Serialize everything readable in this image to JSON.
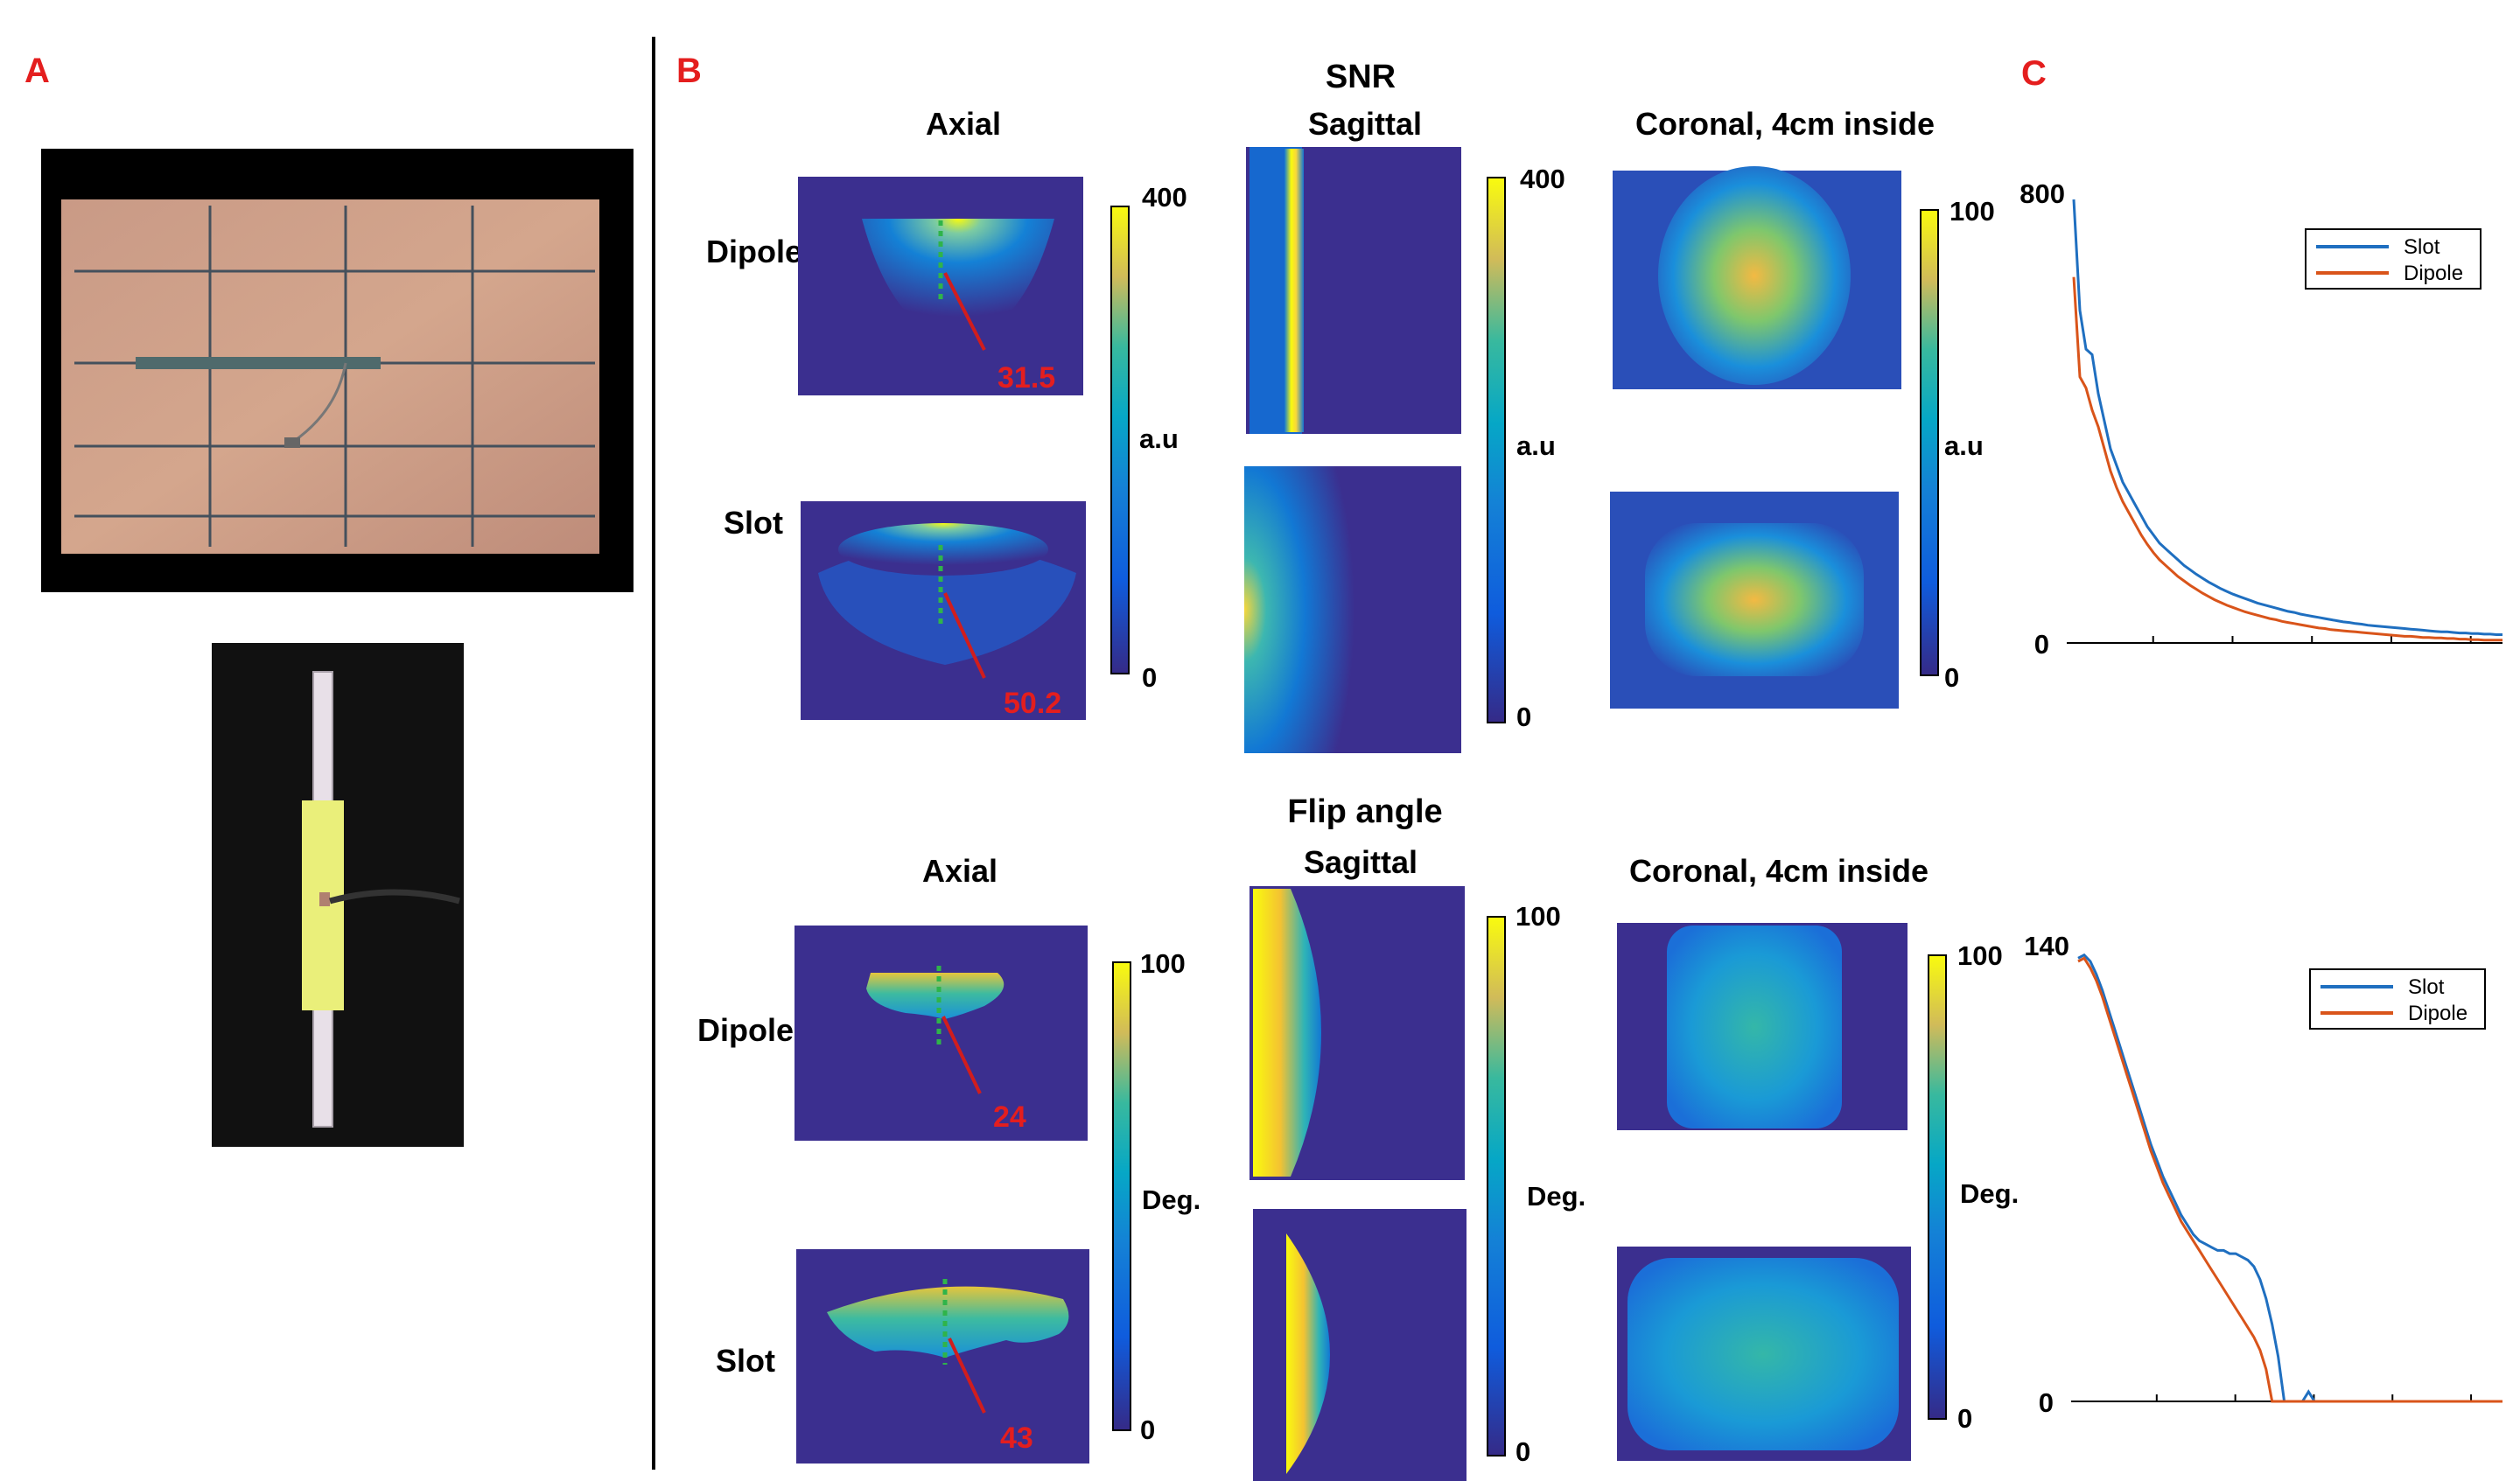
{
  "panels": {
    "a": "A",
    "b": "B",
    "c": "C"
  },
  "snr_section": {
    "title": "SNR",
    "axial": "Axial",
    "sagittal": "Sagittal",
    "coronal": "Coronal, 4cm inside",
    "row_dipole": "Dipole",
    "row_slot": "Slot",
    "dipole_value": "31.5",
    "slot_value": "50.2",
    "colorbars": [
      {
        "max": "400",
        "min": "0",
        "unit": "a.u"
      },
      {
        "max": "400",
        "min": "0",
        "unit": "a.u"
      },
      {
        "max": "100",
        "min": "0",
        "unit": "a.u"
      }
    ]
  },
  "flip_section": {
    "title": "Flip angle",
    "axial": "Axial",
    "sagittal": "Sagittal",
    "coronal": "Coronal, 4cm inside",
    "row_dipole": "Dipole",
    "row_slot": "Slot",
    "dipole_value": "24",
    "slot_value": "43",
    "colorbars": [
      {
        "max": "100",
        "min": "0",
        "unit": "Deg."
      },
      {
        "max": "100",
        "min": "0",
        "unit": "Deg."
      },
      {
        "max": "100",
        "min": "0",
        "unit": "Deg."
      }
    ]
  },
  "colors": {
    "slot": "#1f6fc0",
    "dipole": "#d9541a",
    "red_label": "#e41e1e",
    "map_bg": "#3b2f8f",
    "board": "#c9977f"
  },
  "chart_data": [
    {
      "type": "line",
      "title": "",
      "xlabel": "",
      "ylabel": "",
      "ylim": [
        0,
        800
      ],
      "ytick_labels": [
        "0",
        "800"
      ],
      "legend_position": "top-right",
      "x": [
        0,
        1,
        2,
        3,
        4,
        5,
        6,
        7,
        8,
        9,
        10,
        11,
        12,
        13,
        14,
        15,
        16,
        17,
        18,
        19,
        20,
        21,
        22,
        23,
        24,
        25,
        26,
        27,
        28,
        29,
        30,
        31,
        32,
        33,
        34,
        35,
        36,
        37,
        38,
        39,
        40,
        41,
        42,
        43,
        44,
        45,
        46,
        47,
        48,
        49,
        50,
        51,
        52,
        53,
        54,
        55,
        56,
        57,
        58,
        59,
        60,
        61,
        62,
        63,
        64,
        65,
        66,
        67,
        68,
        69,
        70
      ],
      "series": [
        {
          "name": "Slot",
          "values": [
            800,
            600,
            530,
            520,
            450,
            400,
            350,
            320,
            290,
            270,
            250,
            230,
            210,
            195,
            180,
            170,
            160,
            150,
            140,
            132,
            124,
            117,
            110,
            104,
            98,
            93,
            88,
            84,
            80,
            76,
            72,
            69,
            66,
            63,
            60,
            57,
            55,
            52,
            50,
            48,
            46,
            44,
            42,
            40,
            38,
            37,
            35,
            34,
            32,
            31,
            30,
            29,
            28,
            27,
            26,
            25,
            24,
            23,
            22,
            21,
            20,
            20,
            19,
            18,
            18,
            17,
            17,
            16,
            16,
            15,
            15
          ]
        },
        {
          "name": "Dipole",
          "values": [
            660,
            480,
            460,
            420,
            390,
            350,
            310,
            280,
            255,
            235,
            215,
            195,
            178,
            163,
            150,
            140,
            130,
            120,
            112,
            104,
            97,
            90,
            84,
            78,
            73,
            68,
            64,
            60,
            56,
            53,
            50,
            47,
            44,
            42,
            39,
            37,
            35,
            33,
            31,
            29,
            27,
            26,
            24,
            23,
            22,
            21,
            20,
            19,
            18,
            17,
            16,
            15,
            14,
            13,
            12,
            12,
            11,
            10,
            10,
            9,
            9,
            8,
            8,
            7,
            7,
            6,
            6,
            5,
            5,
            5,
            5
          ]
        }
      ]
    },
    {
      "type": "line",
      "title": "",
      "xlabel": "",
      "ylabel": "",
      "ylim": [
        0,
        140
      ],
      "ytick_labels": [
        "0",
        "140"
      ],
      "legend_position": "top-right",
      "x": [
        0,
        1,
        2,
        3,
        4,
        5,
        6,
        7,
        8,
        9,
        10,
        11,
        12,
        13,
        14,
        15,
        16,
        17,
        18,
        19,
        20,
        21,
        22,
        23,
        24,
        25,
        26,
        27,
        28,
        29,
        30,
        31,
        32,
        33,
        34,
        35,
        36,
        37,
        38,
        39,
        40,
        41,
        42,
        43,
        44,
        45,
        46,
        47,
        48,
        49,
        50,
        51,
        52,
        53,
        54,
        55,
        56,
        57,
        58,
        59,
        60,
        61,
        62,
        63,
        64,
        65,
        66,
        67,
        68,
        69,
        70
      ],
      "series": [
        {
          "name": "Slot",
          "values": [
            138,
            139,
            137,
            133,
            128,
            122,
            116,
            110,
            104,
            98,
            92,
            86,
            80,
            75,
            70,
            66,
            62,
            58,
            55,
            52,
            50,
            49,
            48,
            47,
            47,
            46,
            46,
            45,
            44,
            42,
            38,
            32,
            24,
            14,
            0,
            0,
            0,
            0,
            3,
            0,
            0,
            0,
            0,
            0,
            0,
            0,
            0,
            0,
            0,
            0,
            0,
            0,
            0,
            0,
            0,
            0,
            0,
            0,
            0,
            0,
            0,
            0,
            0,
            0,
            0,
            0,
            0,
            0,
            0,
            0,
            0
          ]
        },
        {
          "name": "Dipole",
          "values": [
            137,
            138,
            135,
            131,
            126,
            120,
            114,
            108,
            102,
            96,
            90,
            84,
            78,
            73,
            68,
            64,
            60,
            56,
            53,
            50,
            47,
            44,
            41,
            38,
            35,
            32,
            29,
            26,
            23,
            20,
            16,
            10,
            0,
            0,
            0,
            0,
            0,
            0,
            0,
            0,
            0,
            0,
            0,
            0,
            0,
            0,
            0,
            0,
            0,
            0,
            0,
            0,
            0,
            0,
            0,
            0,
            0,
            0,
            0,
            0,
            0,
            0,
            0,
            0,
            0,
            0,
            0,
            0,
            0,
            0,
            0
          ]
        }
      ]
    }
  ]
}
